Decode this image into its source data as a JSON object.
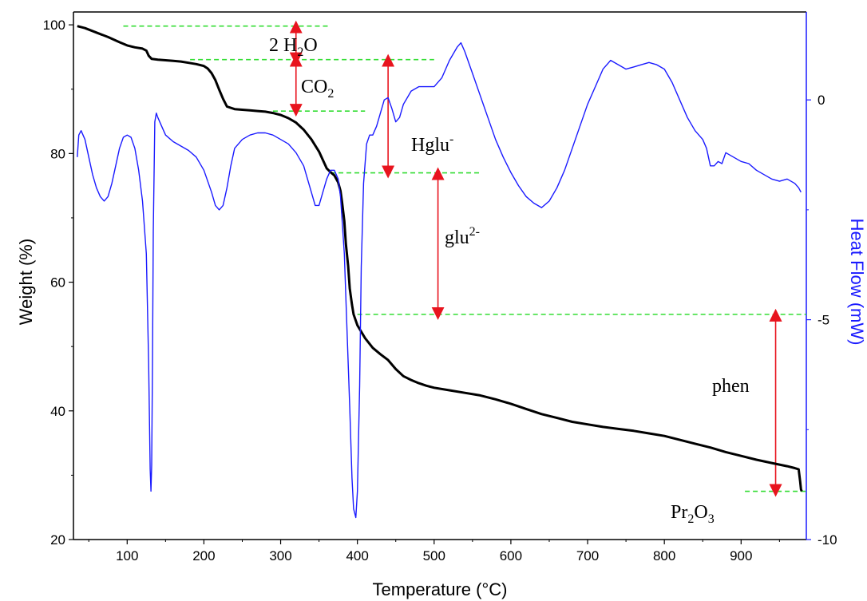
{
  "chart_data": {
    "type": "line",
    "xlabel": "Temperature (°C)",
    "ylabel": "Weight (%)",
    "y2label": "Heat Flow (mW)",
    "xlim": [
      30,
      985
    ],
    "ylim": [
      20,
      102
    ],
    "y2lim": [
      -10,
      2
    ],
    "xticks": [
      100,
      200,
      300,
      400,
      500,
      600,
      700,
      800,
      900
    ],
    "yticks": [
      20,
      40,
      60,
      80,
      100
    ],
    "y2ticks": [
      -10,
      -5,
      0
    ],
    "colors": {
      "weight": "#000000",
      "heat": "#1a1aff",
      "guide": "#33dd33",
      "arrow": "#e8141e"
    },
    "series": [
      {
        "axis": "left",
        "x": [
          35,
          45,
          60,
          75,
          90,
          100,
          110,
          120,
          125,
          128,
          132,
          140,
          150,
          160,
          170,
          180,
          190,
          200,
          205,
          210,
          215,
          220,
          225,
          230,
          240,
          250,
          260,
          270,
          280,
          290,
          300,
          310,
          320,
          330,
          340,
          350,
          355,
          360,
          365,
          370,
          375,
          378,
          380,
          383,
          385,
          388,
          390,
          393,
          395,
          398,
          400,
          405,
          410,
          420,
          430,
          440,
          450,
          460,
          470,
          480,
          490,
          500,
          520,
          540,
          560,
          580,
          600,
          620,
          640,
          660,
          680,
          700,
          720,
          740,
          760,
          780,
          800,
          820,
          840,
          860,
          880,
          900,
          920,
          940,
          960,
          970,
          975,
          977,
          978,
          979
        ],
        "values": [
          99.8,
          99.5,
          98.8,
          98.1,
          97.3,
          96.8,
          96.5,
          96.3,
          96.0,
          95.2,
          94.7,
          94.6,
          94.5,
          94.4,
          94.3,
          94.1,
          93.9,
          93.6,
          93.2,
          92.5,
          91.4,
          89.9,
          88.5,
          87.3,
          86.9,
          86.8,
          86.7,
          86.6,
          86.5,
          86.3,
          86.0,
          85.5,
          84.8,
          83.7,
          82.2,
          80.3,
          79.0,
          77.7,
          77.1,
          76.6,
          75.5,
          74.2,
          72.5,
          69.5,
          66.0,
          62.5,
          59.0,
          56.5,
          55.0,
          54.0,
          53.3,
          52.3,
          51.3,
          49.8,
          48.8,
          47.9,
          46.5,
          45.4,
          44.8,
          44.3,
          43.9,
          43.6,
          43.2,
          42.8,
          42.4,
          41.8,
          41.1,
          40.3,
          39.5,
          38.9,
          38.3,
          37.9,
          37.5,
          37.2,
          36.9,
          36.5,
          36.1,
          35.5,
          34.9,
          34.3,
          33.6,
          33.0,
          32.4,
          31.9,
          31.4,
          31.1,
          30.9,
          29.0,
          27.8,
          27.5
        ]
      },
      {
        "axis": "right",
        "x": [
          35,
          37,
          40,
          45,
          50,
          55,
          60,
          65,
          70,
          75,
          80,
          85,
          90,
          95,
          100,
          105,
          110,
          115,
          120,
          125,
          128,
          130,
          131,
          132,
          133,
          134,
          136,
          138,
          140,
          145,
          150,
          160,
          170,
          180,
          190,
          200,
          210,
          215,
          220,
          225,
          230,
          235,
          240,
          250,
          260,
          270,
          280,
          290,
          300,
          310,
          320,
          330,
          340,
          345,
          350,
          355,
          360,
          365,
          370,
          375,
          378,
          380,
          383,
          386,
          390,
          393,
          395,
          398,
          400,
          403,
          405,
          408,
          412,
          416,
          420,
          425,
          430,
          435,
          440,
          445,
          450,
          455,
          460,
          470,
          480,
          490,
          500,
          510,
          520,
          530,
          535,
          540,
          550,
          560,
          570,
          580,
          590,
          600,
          610,
          620,
          630,
          640,
          650,
          660,
          670,
          680,
          690,
          700,
          710,
          720,
          730,
          740,
          750,
          760,
          770,
          780,
          790,
          800,
          810,
          820,
          830,
          840,
          850,
          855,
          860,
          865,
          870,
          875,
          880,
          890,
          900,
          910,
          920,
          930,
          940,
          950,
          960,
          970,
          975,
          978
        ],
        "values": [
          -1.3,
          -0.8,
          -0.7,
          -0.9,
          -1.3,
          -1.7,
          -2.0,
          -2.2,
          -2.3,
          -2.2,
          -1.9,
          -1.5,
          -1.1,
          -0.85,
          -0.8,
          -0.85,
          -1.1,
          -1.6,
          -2.3,
          -3.5,
          -6.0,
          -8.4,
          -8.9,
          -8.3,
          -6.0,
          -3.0,
          -0.5,
          -0.3,
          -0.4,
          -0.6,
          -0.8,
          -0.95,
          -1.05,
          -1.15,
          -1.3,
          -1.6,
          -2.1,
          -2.4,
          -2.5,
          -2.4,
          -2.0,
          -1.5,
          -1.1,
          -0.9,
          -0.8,
          -0.75,
          -0.75,
          -0.8,
          -0.9,
          -1.0,
          -1.2,
          -1.5,
          -2.1,
          -2.4,
          -2.4,
          -2.1,
          -1.8,
          -1.6,
          -1.6,
          -1.8,
          -2.2,
          -2.7,
          -3.5,
          -5.0,
          -7.0,
          -8.6,
          -9.3,
          -9.5,
          -8.9,
          -6.5,
          -3.8,
          -1.9,
          -1.0,
          -0.8,
          -0.8,
          -0.6,
          -0.3,
          0.0,
          0.05,
          -0.2,
          -0.5,
          -0.4,
          -0.1,
          0.2,
          0.3,
          0.3,
          0.3,
          0.5,
          0.9,
          1.2,
          1.3,
          1.1,
          0.6,
          0.1,
          -0.4,
          -0.9,
          -1.3,
          -1.65,
          -1.95,
          -2.2,
          -2.35,
          -2.45,
          -2.3,
          -2.0,
          -1.6,
          -1.1,
          -0.6,
          -0.1,
          0.3,
          0.7,
          0.9,
          0.8,
          0.7,
          0.75,
          0.8,
          0.85,
          0.8,
          0.7,
          0.4,
          0.0,
          -0.4,
          -0.7,
          -0.9,
          -1.1,
          -1.5,
          -1.5,
          -1.4,
          -1.45,
          -1.2,
          -1.3,
          -1.4,
          -1.45,
          -1.6,
          -1.7,
          -1.8,
          -1.85,
          -1.8,
          -1.9,
          -2.0,
          -2.1
        ]
      }
    ],
    "annotations": {
      "water": {
        "base": "2 H",
        "sub": "2",
        "tail": "O"
      },
      "co2": {
        "base": "CO",
        "sub": "2"
      },
      "hglu": {
        "base": "Hglu",
        "sup": "-"
      },
      "glu": {
        "base": "glu",
        "sup": "2-"
      },
      "phen": {
        "base": "phen"
      },
      "pr2o3": {
        "base": "Pr",
        "sub1": "2",
        "mid": "O",
        "sub2": "3"
      }
    },
    "steps": [
      {
        "from": 99.8,
        "to": 94.6,
        "x": 320
      },
      {
        "from": 94.6,
        "to": 86.6,
        "x": 320
      },
      {
        "from": 94.6,
        "to": 77.0,
        "x": 440
      },
      {
        "from": 77.0,
        "to": 55.0,
        "x": 505
      },
      {
        "from": 55.0,
        "to": 27.5,
        "x": 945
      }
    ]
  }
}
